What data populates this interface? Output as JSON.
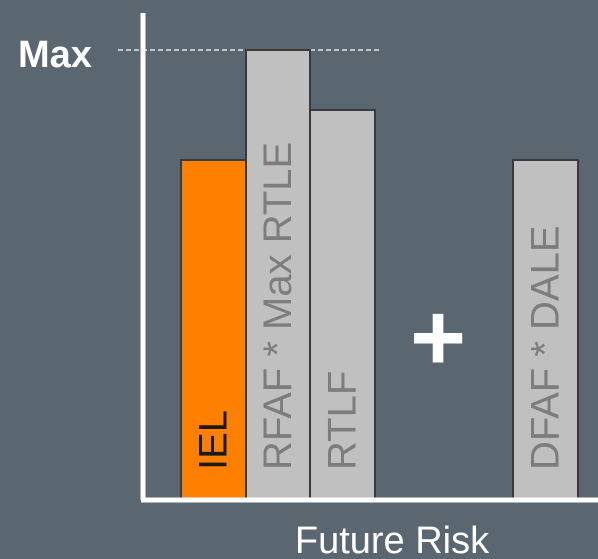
{
  "chart_data": {
    "type": "bar",
    "xlabel": "Future Risk",
    "max_label": "Max",
    "operator": "+",
    "ylim": [
      0,
      1
    ],
    "max_value": 0.9,
    "categories": [
      "IEL",
      "RFAF * Max RTLE",
      "RTLF",
      "DFAF * DALE"
    ],
    "values": [
      0.68,
      0.9,
      0.78,
      0.68
    ],
    "colors": {
      "background": "#5a6670",
      "axis": "#ffffff",
      "highlight_bar": "#ff8000",
      "gray_bar": "#c0c0c0",
      "bar_border": "#3a3a3a",
      "label_on_highlight": "#1a1a1a",
      "label_on_gray": "#7d7d7d",
      "text": "#ffffff"
    }
  }
}
